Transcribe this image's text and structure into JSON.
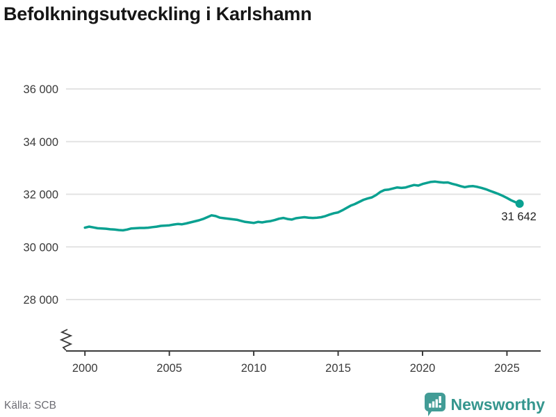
{
  "title": "Befolkningsutveckling i Karlshamn",
  "source": "Källa: SCB",
  "branding": {
    "logo_text": "Newsworthy",
    "logo_icon": "newsworthy-bar-chart-bubble-icon",
    "brand_color": "#35968e",
    "badge_color": "#429c96"
  },
  "chart_data": {
    "type": "line",
    "title": "Befolkningsutveckling i Karlshamn",
    "xlabel": "",
    "ylabel": "",
    "grid": "horizontal",
    "axis_break": true,
    "line_color": "#0aa191",
    "grid_color": "#e3e3e3",
    "axis_color": "#3a3a3a",
    "tick_label_color": "#3a3a3a",
    "x_ticks": [
      2000,
      2005,
      2010,
      2015,
      2020,
      2025
    ],
    "x_tick_labels": [
      "2000",
      "2005",
      "2010",
      "2015",
      "2020",
      "2025"
    ],
    "y_ticks": [
      36000,
      34000,
      32000,
      30000,
      28000
    ],
    "y_tick_labels": [
      "36 000",
      "34 000",
      "32 000",
      "30 000",
      "28 000"
    ],
    "xlim": [
      1998.88,
      2027.0
    ],
    "ylim": [
      28000,
      36000
    ],
    "last_point_label": "31 642",
    "last_point_value": 31642,
    "series": [
      {
        "name": "Befolkning i Karlshamn",
        "x": [
          2000,
          2000.25,
          2000.5,
          2000.75,
          2001,
          2001.25,
          2001.5,
          2001.75,
          2002,
          2002.25,
          2002.5,
          2002.75,
          2003,
          2003.25,
          2003.5,
          2003.75,
          2004,
          2004.25,
          2004.5,
          2004.75,
          2005,
          2005.25,
          2005.5,
          2005.75,
          2006,
          2006.25,
          2006.5,
          2006.75,
          2007,
          2007.25,
          2007.5,
          2007.75,
          2008,
          2008.25,
          2008.5,
          2008.75,
          2009,
          2009.25,
          2009.5,
          2009.75,
          2010,
          2010.25,
          2010.5,
          2010.75,
          2011,
          2011.25,
          2011.5,
          2011.75,
          2012,
          2012.25,
          2012.5,
          2012.75,
          2013,
          2013.25,
          2013.5,
          2013.75,
          2014,
          2014.25,
          2014.5,
          2014.75,
          2015,
          2015.25,
          2015.5,
          2015.75,
          2016,
          2016.25,
          2016.5,
          2016.75,
          2017,
          2017.25,
          2017.5,
          2017.75,
          2018,
          2018.25,
          2018.5,
          2018.75,
          2019,
          2019.25,
          2019.5,
          2019.75,
          2020,
          2020.25,
          2020.5,
          2020.75,
          2021,
          2021.25,
          2021.5,
          2021.75,
          2022,
          2022.25,
          2022.5,
          2022.75,
          2023,
          2023.25,
          2023.5,
          2023.75,
          2024,
          2024.25,
          2024.5,
          2024.75,
          2025,
          2025.25,
          2025.5,
          2025.75
        ],
        "y": [
          30730,
          30770,
          30740,
          30710,
          30700,
          30690,
          30670,
          30660,
          30640,
          30630,
          30660,
          30700,
          30710,
          30720,
          30720,
          30730,
          30750,
          30770,
          30800,
          30810,
          30820,
          30850,
          30870,
          30860,
          30890,
          30930,
          30970,
          31010,
          31060,
          31130,
          31200,
          31170,
          31110,
          31090,
          31070,
          31050,
          31030,
          30990,
          30950,
          30930,
          30910,
          30950,
          30930,
          30960,
          30980,
          31020,
          31070,
          31100,
          31060,
          31040,
          31090,
          31110,
          31130,
          31110,
          31100,
          31110,
          31130,
          31170,
          31230,
          31280,
          31310,
          31390,
          31480,
          31570,
          31630,
          31710,
          31790,
          31840,
          31880,
          31970,
          32090,
          32160,
          32180,
          32220,
          32260,
          32240,
          32260,
          32310,
          32350,
          32330,
          32390,
          32430,
          32470,
          32480,
          32460,
          32440,
          32450,
          32400,
          32360,
          32310,
          32270,
          32300,
          32310,
          32280,
          32240,
          32190,
          32130,
          32070,
          32010,
          31940,
          31860,
          31770,
          31700,
          31642
        ]
      }
    ]
  }
}
